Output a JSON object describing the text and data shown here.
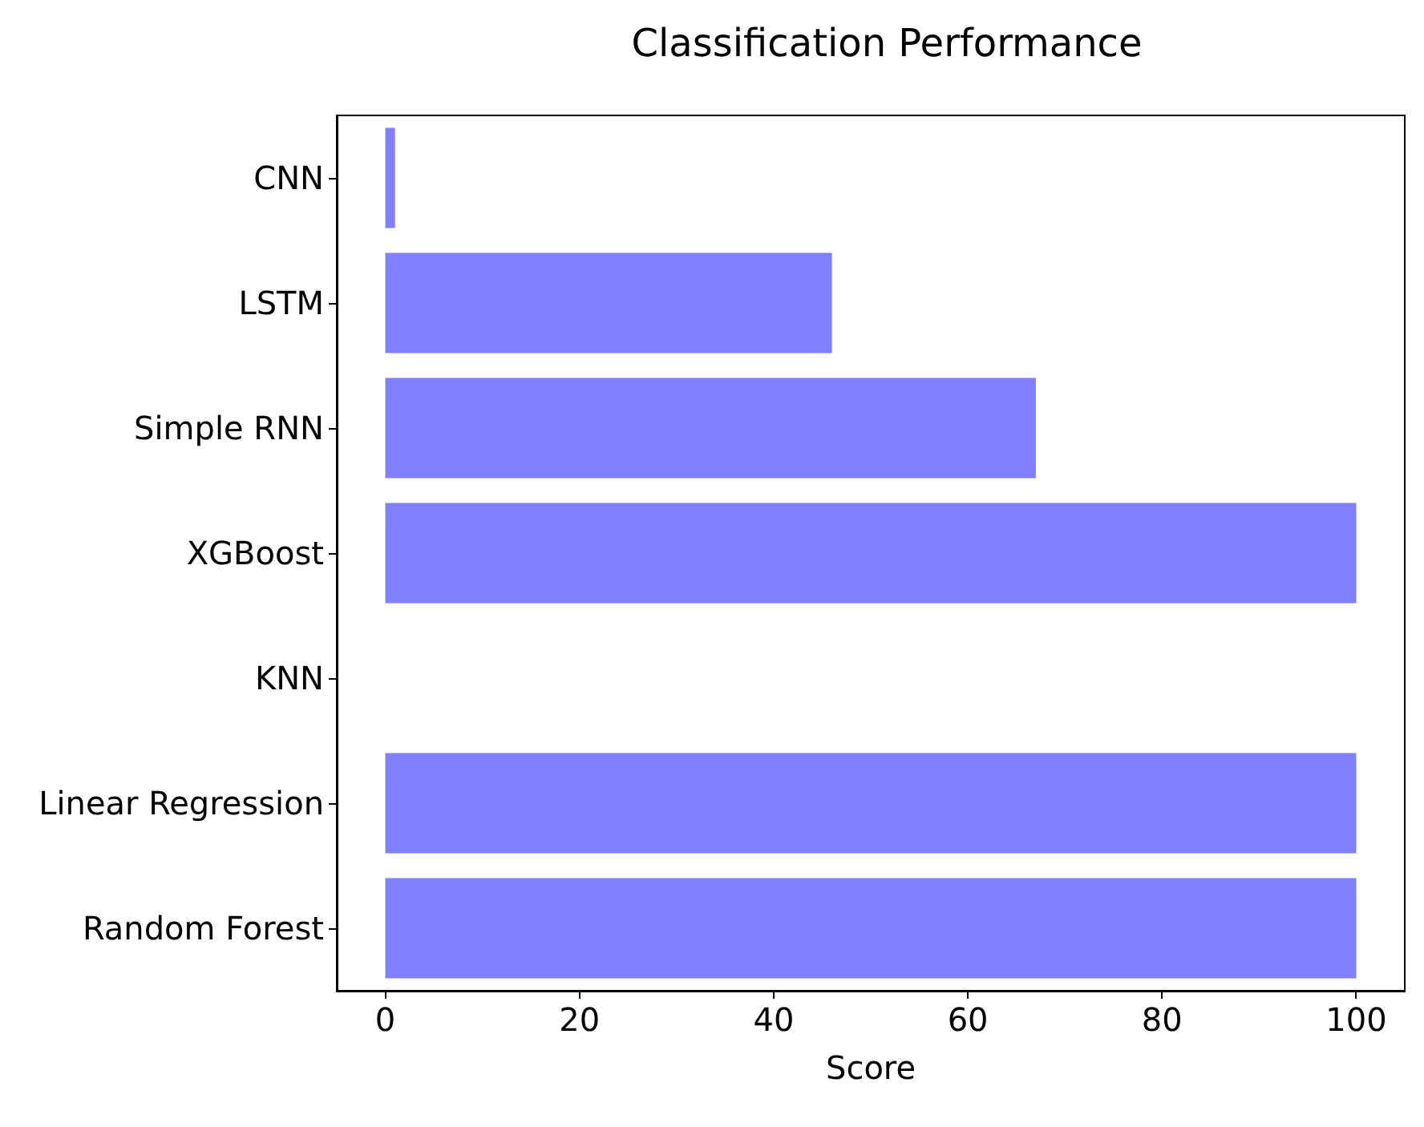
{
  "chart_data": {
    "type": "bar",
    "orientation": "horizontal",
    "title": "Classification Performance",
    "xlabel": "Score",
    "categories": [
      "CNN",
      "LSTM",
      "Simple RNN",
      "XGBoost",
      "KNN",
      "Linear Regression",
      "Random Forest"
    ],
    "values": [
      1,
      46,
      67,
      100,
      0,
      100,
      100
    ],
    "color": "#7f7fff",
    "xlim": [
      -5,
      105
    ],
    "xticks": [
      0,
      20,
      40,
      60,
      80,
      100
    ],
    "grid": false
  }
}
